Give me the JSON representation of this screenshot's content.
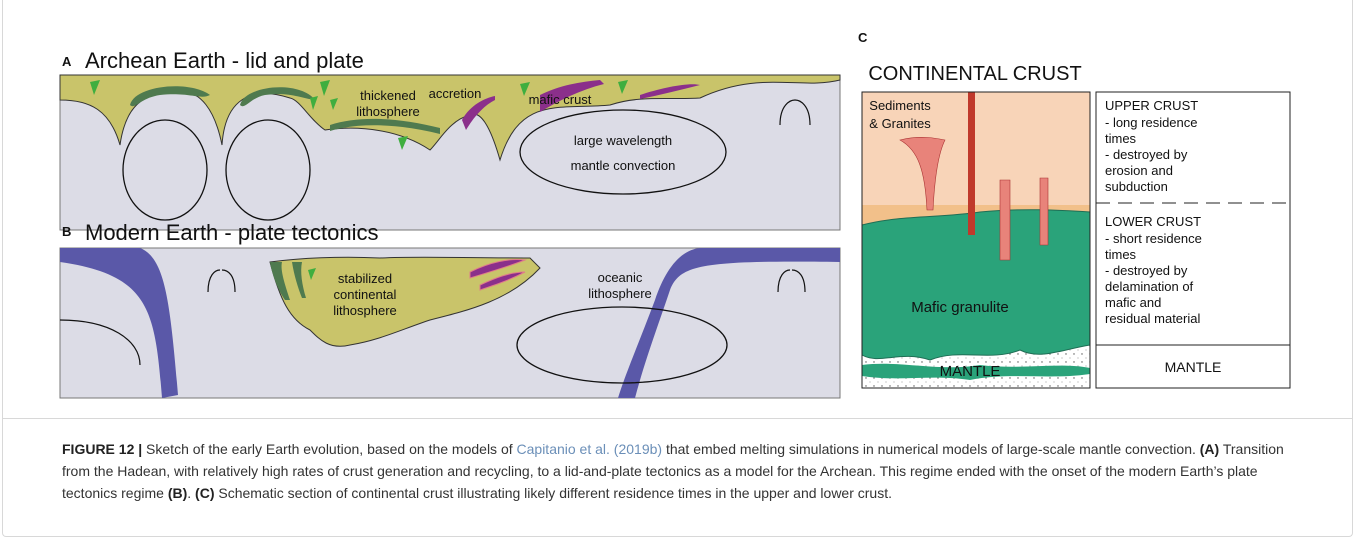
{
  "panel_a": {
    "letter": "A",
    "title": "Archean Earth - lid and plate",
    "labels": {
      "thickened": [
        "thickened",
        "lithosphere"
      ],
      "accretion": "accretion",
      "mafic_crust": "mafic crust",
      "convection": [
        "large wavelength",
        "mantle convection"
      ]
    }
  },
  "panel_b": {
    "letter": "B",
    "title": "Modern Earth - plate tectonics",
    "labels": {
      "stabilized": [
        "stabilized",
        "continental",
        "lithosphere"
      ],
      "oceanic": [
        "oceanic",
        "lithosphere"
      ]
    }
  },
  "panel_c": {
    "letter": "C",
    "title": "CONTINENTAL CRUST",
    "section": {
      "sediments": [
        "Sediments",
        "& Granites"
      ],
      "mafic": "Mafic granulite",
      "mantle": "MANTLE"
    },
    "legend": {
      "upper_title": "UPPER CRUST",
      "upper_lines": [
        "- long residence",
        "times",
        "- destroyed by",
        "erosion and",
        "subduction"
      ],
      "lower_title": "LOWER CRUST",
      "lower_lines": [
        "- short residence",
        "times",
        "- destroyed by",
        "delamination of",
        "mafic and",
        "residual material"
      ],
      "mantle": "MANTLE"
    }
  },
  "caption": {
    "label": "FIGURE 12 |",
    "text_1": " Sketch of the early Earth evolution, based on the models of ",
    "citation": "Capitanio et al. (2019b)",
    "text_2": " that embed melting simulations in numerical models of large-scale mantle convection. ",
    "ref_a": "(A)",
    "text_3": " Transition from the Hadean, with relatively high rates of crust generation and recycling, to a lid-and-plate tectonics as a model for the Archean. This regime ended with the onset of the modern Earth’s plate tectonics regime ",
    "ref_b": "(B)",
    "text_4": ". ",
    "ref_c": "(C)",
    "text_5": " Schematic section of continental crust illustrating likely different residence times in the upper and lower crust."
  }
}
